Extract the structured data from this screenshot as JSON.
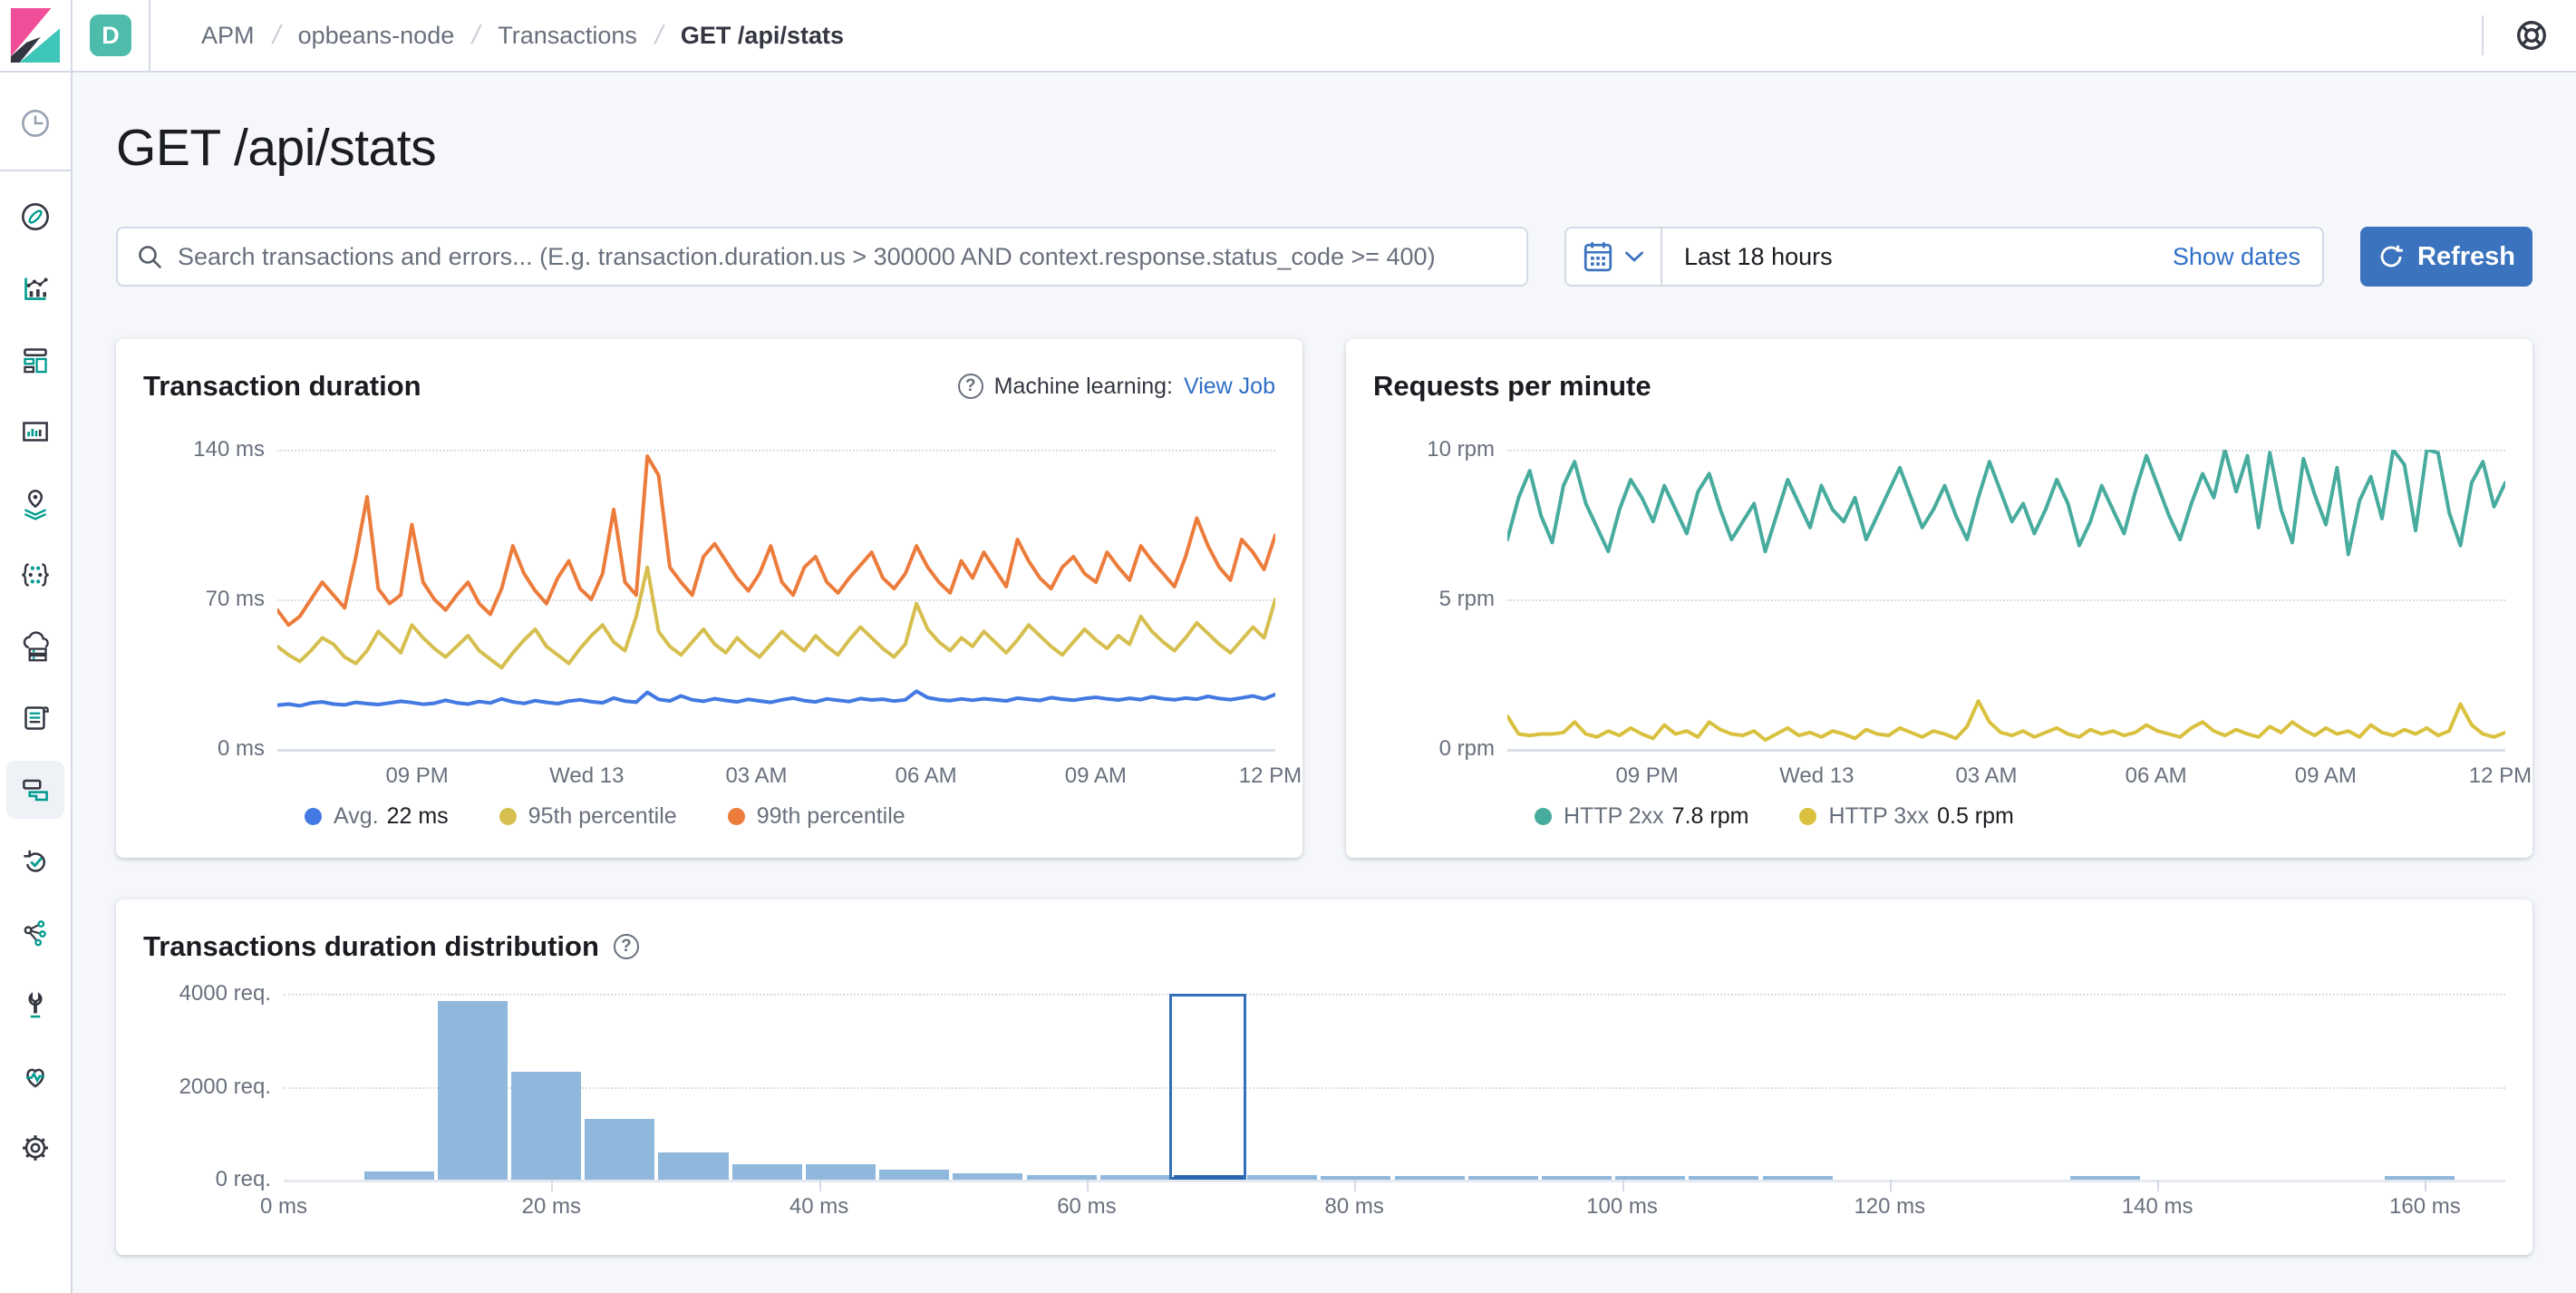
{
  "header": {
    "space_badge": "D",
    "breadcrumbs": [
      "APM",
      "opbeans-node",
      "Transactions",
      "GET /api/stats"
    ]
  },
  "icons": {
    "help_glyph": "?",
    "breadcrumb_separator": "/"
  },
  "sidebar": {
    "items": [
      {
        "name": "recently-viewed",
        "icon": "clock"
      },
      {
        "name": "discover",
        "icon": "compass"
      },
      {
        "name": "visualize",
        "icon": "visualize"
      },
      {
        "name": "dashboard",
        "icon": "dashboard"
      },
      {
        "name": "canvas",
        "icon": "canvas"
      },
      {
        "name": "maps",
        "icon": "maps"
      },
      {
        "name": "machine-learning",
        "icon": "ml"
      },
      {
        "name": "infrastructure",
        "icon": "infra"
      },
      {
        "name": "logs",
        "icon": "logs"
      },
      {
        "name": "apm",
        "icon": "apm",
        "selected": true
      },
      {
        "name": "uptime",
        "icon": "uptime"
      },
      {
        "name": "graph",
        "icon": "graph"
      },
      {
        "name": "dev-tools",
        "icon": "devtools"
      },
      {
        "name": "stack-monitoring",
        "icon": "monitoring"
      },
      {
        "name": "management",
        "icon": "gear"
      }
    ]
  },
  "page": {
    "title": "GET /api/stats"
  },
  "search": {
    "placeholder": "Search transactions and errors... (E.g. transaction.duration.us > 300000 AND context.response.status_code >= 400)"
  },
  "datepicker": {
    "range": "Last 18 hours",
    "show_dates": "Show dates",
    "refresh": "Refresh"
  },
  "colors": {
    "primary_button_blue": "#3b73be",
    "link_blue": "#2f6fc7",
    "space_badge_teal": "#4dbcaa",
    "avg_line_blue": "#4379e2",
    "p95_line_yellow": "#d6bf4f",
    "p99_line_orange": "#ec7c3c",
    "http2xx_teal": "#47ab9d",
    "http3xx_yellow": "#d9c13f",
    "histogram_bar": "#8fb8dc",
    "histogram_selected": "#2a66ae",
    "page_background": "#f5f7fa"
  },
  "chart_data": [
    {
      "type": "line",
      "title": "Transaction duration",
      "ml_label": "Machine learning:",
      "ml_link": "View Job",
      "ylim": [
        0,
        140
      ],
      "yticks": [
        "140 ms",
        "70 ms",
        "0 ms"
      ],
      "xticks": {
        "labels": [
          "09 PM",
          "Wed 13",
          "03 AM",
          "06 AM",
          "09 AM",
          "12 PM"
        ],
        "fractions": [
          0.14,
          0.31,
          0.48,
          0.65,
          0.82,
          0.995
        ]
      },
      "series": [
        {
          "name": "Avg.",
          "legend_value": "22 ms",
          "color": "#4379e2",
          "values": [
            20.5,
            21,
            20.2,
            21.5,
            22,
            21,
            20.6,
            21.8,
            21.2,
            20.8,
            21.5,
            22.3,
            21.7,
            20.9,
            21.4,
            22.8,
            21.6,
            21,
            22.2,
            21.5,
            23.4,
            22,
            21.3,
            22.6,
            21.8,
            21.2,
            22.4,
            23,
            22.1,
            21.6,
            23.8,
            22.4,
            21.9,
            26.5,
            23.2,
            22.5,
            24.8,
            23,
            22.3,
            23.5,
            22.7,
            22,
            23.2,
            22.5,
            21.8,
            23,
            23.8,
            22.6,
            22,
            23.4,
            22.8,
            22.2,
            23.6,
            22.9,
            23.3,
            22.4,
            23,
            27,
            24,
            23.1,
            22.6,
            23.4,
            22.8,
            23.5,
            23,
            22.5,
            23.8,
            23.2,
            22.7,
            24,
            23.3,
            22.8,
            23.6,
            24.2,
            23.4,
            22.9,
            23.7,
            23.1,
            24.4,
            23.5,
            23,
            23.8,
            23.3,
            24.6,
            23.6,
            23.1,
            23.9,
            24.8,
            23.4,
            25.5
          ]
        },
        {
          "name": "95th percentile",
          "color": "#d6bf4f",
          "values": [
            48,
            44,
            41,
            46,
            52,
            49,
            43,
            40,
            46,
            55,
            50,
            45,
            58,
            52,
            47,
            43,
            48,
            53,
            46,
            42,
            38,
            45,
            51,
            56,
            48,
            44,
            40,
            47,
            53,
            58,
            50,
            46,
            62,
            85,
            55,
            48,
            44,
            50,
            56,
            49,
            45,
            52,
            47,
            43,
            49,
            55,
            50,
            46,
            53,
            48,
            44,
            51,
            57,
            52,
            47,
            43,
            49,
            68,
            56,
            50,
            46,
            52,
            48,
            55,
            50,
            45,
            51,
            58,
            53,
            48,
            44,
            50,
            56,
            51,
            47,
            53,
            49,
            62,
            55,
            50,
            46,
            52,
            59,
            54,
            49,
            45,
            51,
            57,
            52,
            70
          ]
        },
        {
          "name": "99th percentile",
          "color": "#ec7c3c",
          "values": [
            65,
            58,
            62,
            70,
            78,
            72,
            66,
            90,
            118,
            75,
            68,
            72,
            105,
            78,
            70,
            65,
            72,
            78,
            68,
            63,
            75,
            95,
            82,
            74,
            68,
            80,
            88,
            75,
            70,
            82,
            112,
            78,
            72,
            137,
            128,
            85,
            78,
            72,
            90,
            96,
            88,
            80,
            74,
            82,
            95,
            78,
            72,
            85,
            90,
            78,
            73,
            80,
            86,
            92,
            80,
            75,
            82,
            95,
            85,
            78,
            73,
            88,
            80,
            92,
            84,
            76,
            98,
            88,
            80,
            75,
            85,
            90,
            82,
            78,
            92,
            85,
            79,
            95,
            88,
            82,
            76,
            90,
            108,
            95,
            85,
            79,
            98,
            92,
            84,
            100
          ]
        }
      ]
    },
    {
      "type": "line",
      "title": "Requests per minute",
      "ylim": [
        0,
        10
      ],
      "yticks": [
        "10 rpm",
        "5 rpm",
        "0 rpm"
      ],
      "xticks": {
        "labels": [
          "09 PM",
          "Wed 13",
          "03 AM",
          "06 AM",
          "09 AM",
          "12 PM"
        ],
        "fractions": [
          0.14,
          0.31,
          0.48,
          0.65,
          0.82,
          0.995
        ]
      },
      "series": [
        {
          "name": "HTTP 2xx",
          "legend_value": "7.8 rpm",
          "color": "#47ab9d",
          "values": [
            7.0,
            8.4,
            9.3,
            7.8,
            6.9,
            8.8,
            9.6,
            8.2,
            7.4,
            6.6,
            8.0,
            9.0,
            8.4,
            7.6,
            8.8,
            8.0,
            7.2,
            8.6,
            9.2,
            8.0,
            7.0,
            7.6,
            8.2,
            6.6,
            7.8,
            9.0,
            8.2,
            7.4,
            8.8,
            8.0,
            7.6,
            8.4,
            7.0,
            7.8,
            8.6,
            9.4,
            8.4,
            7.4,
            8.0,
            8.8,
            7.8,
            7.0,
            8.4,
            9.6,
            8.6,
            7.6,
            8.2,
            7.2,
            8.0,
            9.0,
            8.2,
            6.8,
            7.6,
            8.8,
            8.0,
            7.2,
            8.6,
            9.8,
            8.8,
            7.8,
            7.0,
            8.2,
            9.2,
            8.4,
            10.0,
            8.6,
            9.8,
            7.4,
            9.9,
            8.0,
            6.9,
            9.7,
            8.5,
            7.5,
            9.4,
            6.5,
            8.3,
            9.1,
            7.7,
            10.0,
            9.5,
            7.3,
            10.0,
            9.9,
            7.9,
            6.8,
            8.9,
            9.6,
            8.1,
            8.9
          ]
        },
        {
          "name": "HTTP 3xx",
          "legend_value": "0.5 rpm",
          "color": "#d9c13f",
          "values": [
            1.1,
            0.5,
            0.45,
            0.5,
            0.5,
            0.55,
            0.9,
            0.5,
            0.4,
            0.6,
            0.45,
            0.7,
            0.5,
            0.35,
            0.8,
            0.5,
            0.6,
            0.4,
            0.9,
            0.65,
            0.5,
            0.45,
            0.6,
            0.3,
            0.5,
            0.7,
            0.45,
            0.55,
            0.4,
            0.6,
            0.5,
            0.35,
            0.65,
            0.5,
            0.45,
            0.7,
            0.55,
            0.4,
            0.6,
            0.5,
            0.35,
            0.75,
            1.6,
            0.9,
            0.55,
            0.45,
            0.6,
            0.4,
            0.55,
            0.7,
            0.5,
            0.4,
            0.65,
            0.5,
            0.6,
            0.45,
            0.55,
            0.8,
            0.6,
            0.5,
            0.4,
            0.7,
            0.9,
            0.6,
            0.45,
            0.65,
            0.5,
            0.4,
            0.75,
            0.55,
            0.9,
            0.65,
            0.45,
            0.7,
            0.5,
            0.6,
            0.4,
            0.8,
            0.55,
            0.45,
            0.65,
            0.5,
            0.7,
            0.45,
            0.6,
            1.5,
            0.8,
            0.5,
            0.4,
            0.55
          ]
        }
      ]
    },
    {
      "type": "bar",
      "title": "Transactions duration distribution",
      "ylim": [
        0,
        4000
      ],
      "yticks": [
        "4000 req.",
        "2000 req.",
        "0 req."
      ],
      "xlim": [
        0,
        166
      ],
      "bucket_width_ms": 5.5,
      "bar_color": "#8fb8dc",
      "selected_color": "#2a66ae",
      "xticks": {
        "labels": [
          "0 ms",
          "20 ms",
          "40 ms",
          "60 ms",
          "80 ms",
          "100 ms",
          "120 ms",
          "140 ms",
          "160 ms"
        ],
        "values": [
          0,
          20,
          40,
          60,
          80,
          100,
          120,
          140,
          160
        ]
      },
      "bars": [
        {
          "x0": 6,
          "value": 170
        },
        {
          "x0": 11.5,
          "value": 3850
        },
        {
          "x0": 17,
          "value": 2320
        },
        {
          "x0": 22.5,
          "value": 1310
        },
        {
          "x0": 28,
          "value": 580
        },
        {
          "x0": 33.5,
          "value": 340
        },
        {
          "x0": 39,
          "value": 330
        },
        {
          "x0": 44.5,
          "value": 215
        },
        {
          "x0": 50,
          "value": 130
        },
        {
          "x0": 55.5,
          "value": 95
        },
        {
          "x0": 61,
          "value": 90
        },
        {
          "x0": 66.5,
          "value": 100,
          "selected": true
        },
        {
          "x0": 72,
          "value": 90
        },
        {
          "x0": 77.5,
          "value": 85
        },
        {
          "x0": 83,
          "value": 85
        },
        {
          "x0": 88.5,
          "value": 85
        },
        {
          "x0": 94,
          "value": 85
        },
        {
          "x0": 99.5,
          "value": 85
        },
        {
          "x0": 105,
          "value": 85
        },
        {
          "x0": 110.5,
          "value": 85
        },
        {
          "x0": 133.5,
          "value": 85
        },
        {
          "x0": 157,
          "value": 80
        }
      ]
    }
  ]
}
